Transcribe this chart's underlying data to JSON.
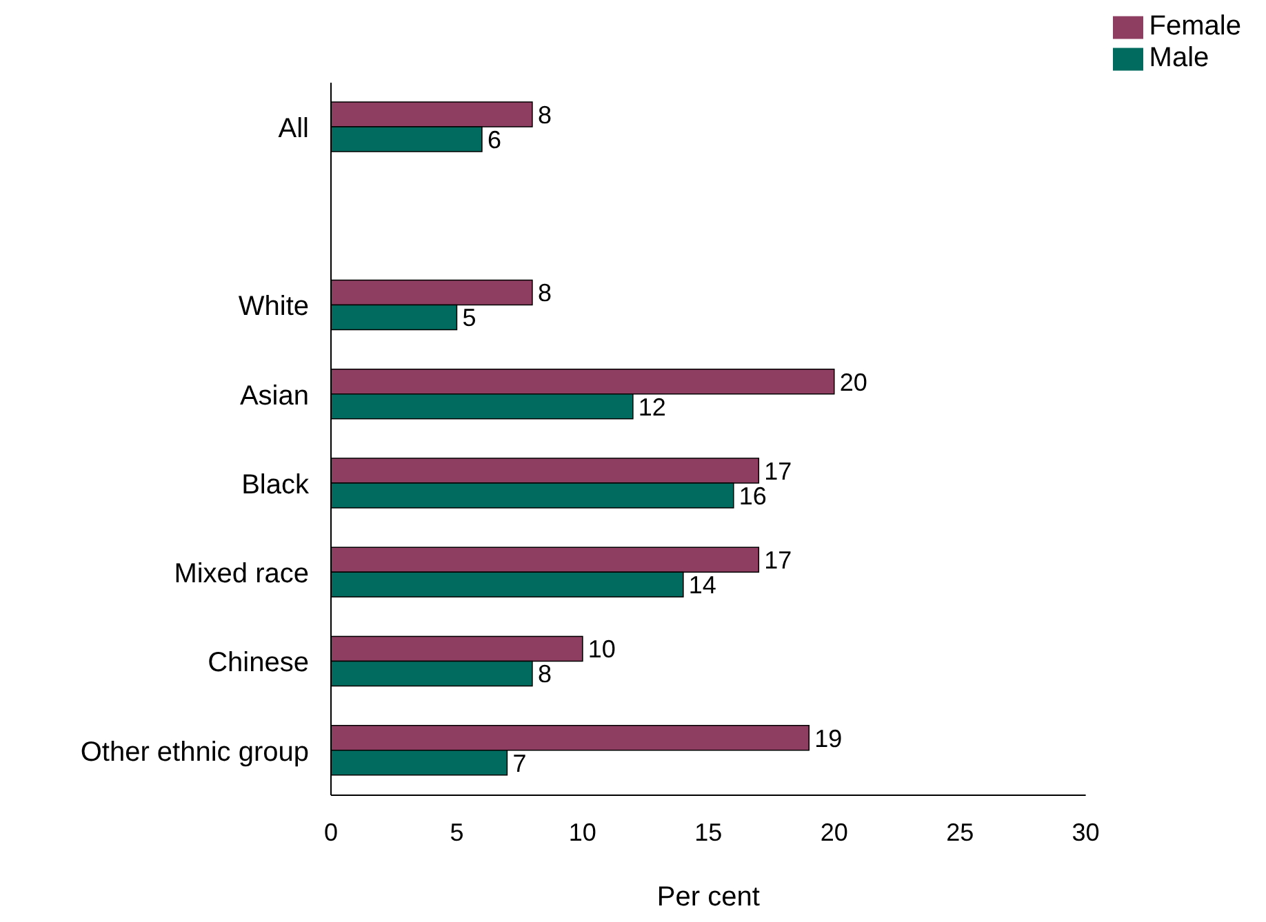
{
  "chart_data": {
    "type": "bar",
    "orientation": "horizontal",
    "xlabel": "Per cent",
    "categories": [
      "All",
      null,
      "White",
      "Asian",
      "Black",
      "Mixed race",
      "Chinese",
      "Other ethnic group"
    ],
    "series": [
      {
        "name": "Female",
        "color": "#8e3f61",
        "values": [
          8,
          null,
          8,
          20,
          17,
          17,
          10,
          19
        ]
      },
      {
        "name": "Male",
        "color": "#006b5e",
        "values": [
          6,
          null,
          5,
          12,
          16,
          14,
          8,
          7
        ]
      }
    ],
    "xlim": [
      0,
      30
    ],
    "xticks": [
      0,
      5,
      10,
      15,
      20,
      25,
      30
    ],
    "data_labels": true,
    "legend": "top right"
  }
}
